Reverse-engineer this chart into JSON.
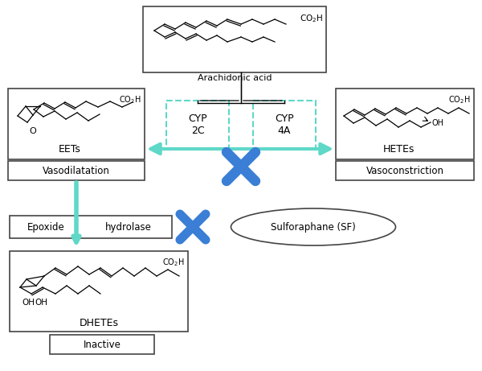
{
  "bg_color": "#ffffff",
  "arrow_color": "#5fd8c8",
  "cross_color": "#3a7fd5",
  "box_border_color": "#444444",
  "dashed_box_color": "#5fd8c8",
  "text_color": "#000000",
  "fig_width": 6.0,
  "fig_height": 4.61,
  "dpi": 100,
  "arachidonic_label": "Arachidonic acid",
  "eets_label": "EETs",
  "vasodil_label": "Vasodilatation",
  "hetes_label": "HETEs",
  "vasocon_label": "Vasoconstriction",
  "cyp2c_label": "CYP\n2C",
  "cyp4a_label": "CYP\n4A",
  "epoxide_label": "Epoxide",
  "hydrolase_label": "hydrolase",
  "sulforaphane_label": "Sulforaphane (SF)",
  "dhetes_label": "DHETEs",
  "inactive_label": "Inactive"
}
